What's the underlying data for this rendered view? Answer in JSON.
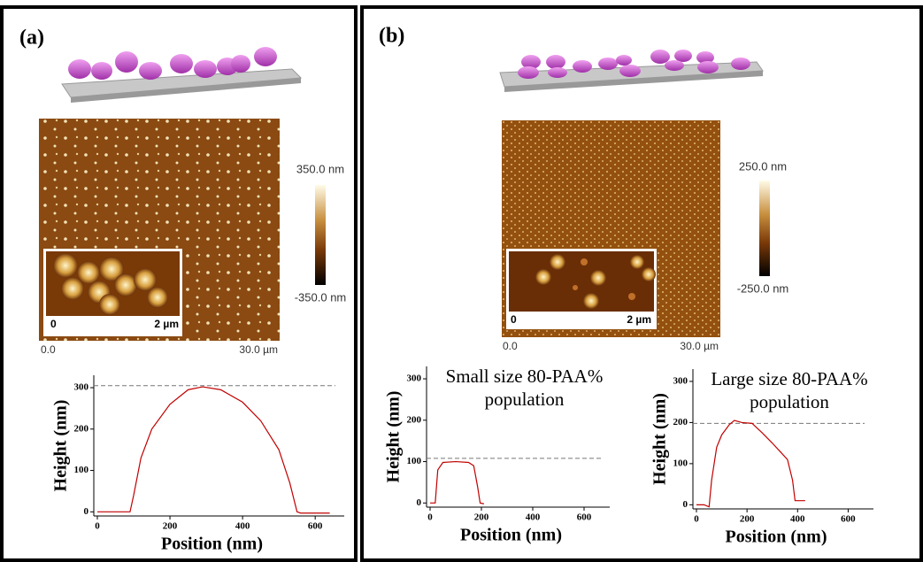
{
  "figure": {
    "panels": [
      {
        "label": "(a)",
        "colorbar": [
          "350.0 nm",
          "-350.0 nm"
        ],
        "scale": [
          "0.0",
          "30.0 µm"
        ],
        "inset": [
          "0",
          "2 µm"
        ]
      },
      {
        "label": "(b)",
        "colorbar": [
          "250.0 nm",
          "-250.0 nm"
        ],
        "scale": [
          "0.0",
          "30.0 µm"
        ],
        "inset": [
          "0",
          "2 µm"
        ]
      }
    ]
  },
  "chart_data": [
    {
      "type": "line",
      "x_label": "Position (nm)",
      "y_label": "Height (nm)",
      "color": "#c00000",
      "x": [
        0,
        90,
        100,
        120,
        150,
        200,
        250,
        290,
        340,
        400,
        450,
        500,
        530,
        550,
        560,
        640
      ],
      "values": [
        0,
        0,
        40,
        130,
        200,
        260,
        295,
        302,
        295,
        265,
        220,
        150,
        70,
        0,
        -3,
        -3
      ],
      "reference_line": 305,
      "xlim": [
        0,
        680
      ],
      "ylim": [
        -10,
        330
      ],
      "xticks": [
        0,
        200,
        400,
        600
      ],
      "yticks": [
        0,
        100,
        200,
        300
      ]
    },
    {
      "type": "line",
      "x_label": "Position (nm)",
      "y_label": "Height (nm)",
      "color": "#c00000",
      "annotation": [
        "Small size 80-PAA%",
        "population"
      ],
      "x": [
        0,
        20,
        30,
        50,
        100,
        150,
        170,
        185,
        195,
        210
      ],
      "values": [
        0,
        0,
        80,
        98,
        100,
        98,
        90,
        40,
        0,
        -2
      ],
      "reference_line": 108,
      "xlim": [
        0,
        700
      ],
      "ylim": [
        -10,
        330
      ],
      "xticks": [
        0,
        200,
        400,
        600
      ],
      "yticks": [
        0,
        100,
        200,
        300
      ]
    },
    {
      "type": "line",
      "x_label": "Position (nm)",
      "y_label": "Height (nm)",
      "color": "#c00000",
      "annotation": [
        "Large size 80-PAA%",
        "population"
      ],
      "x": [
        0,
        30,
        50,
        60,
        80,
        100,
        130,
        150,
        180,
        220,
        260,
        300,
        330,
        360,
        380,
        390,
        430
      ],
      "values": [
        0,
        0,
        -5,
        60,
        140,
        170,
        195,
        205,
        200,
        198,
        175,
        150,
        130,
        110,
        60,
        10,
        10
      ],
      "reference_line": 198,
      "xlim": [
        0,
        700
      ],
      "ylim": [
        -10,
        330
      ],
      "xticks": [
        0,
        200,
        400,
        600
      ],
      "yticks": [
        0,
        100,
        200,
        300
      ]
    }
  ]
}
